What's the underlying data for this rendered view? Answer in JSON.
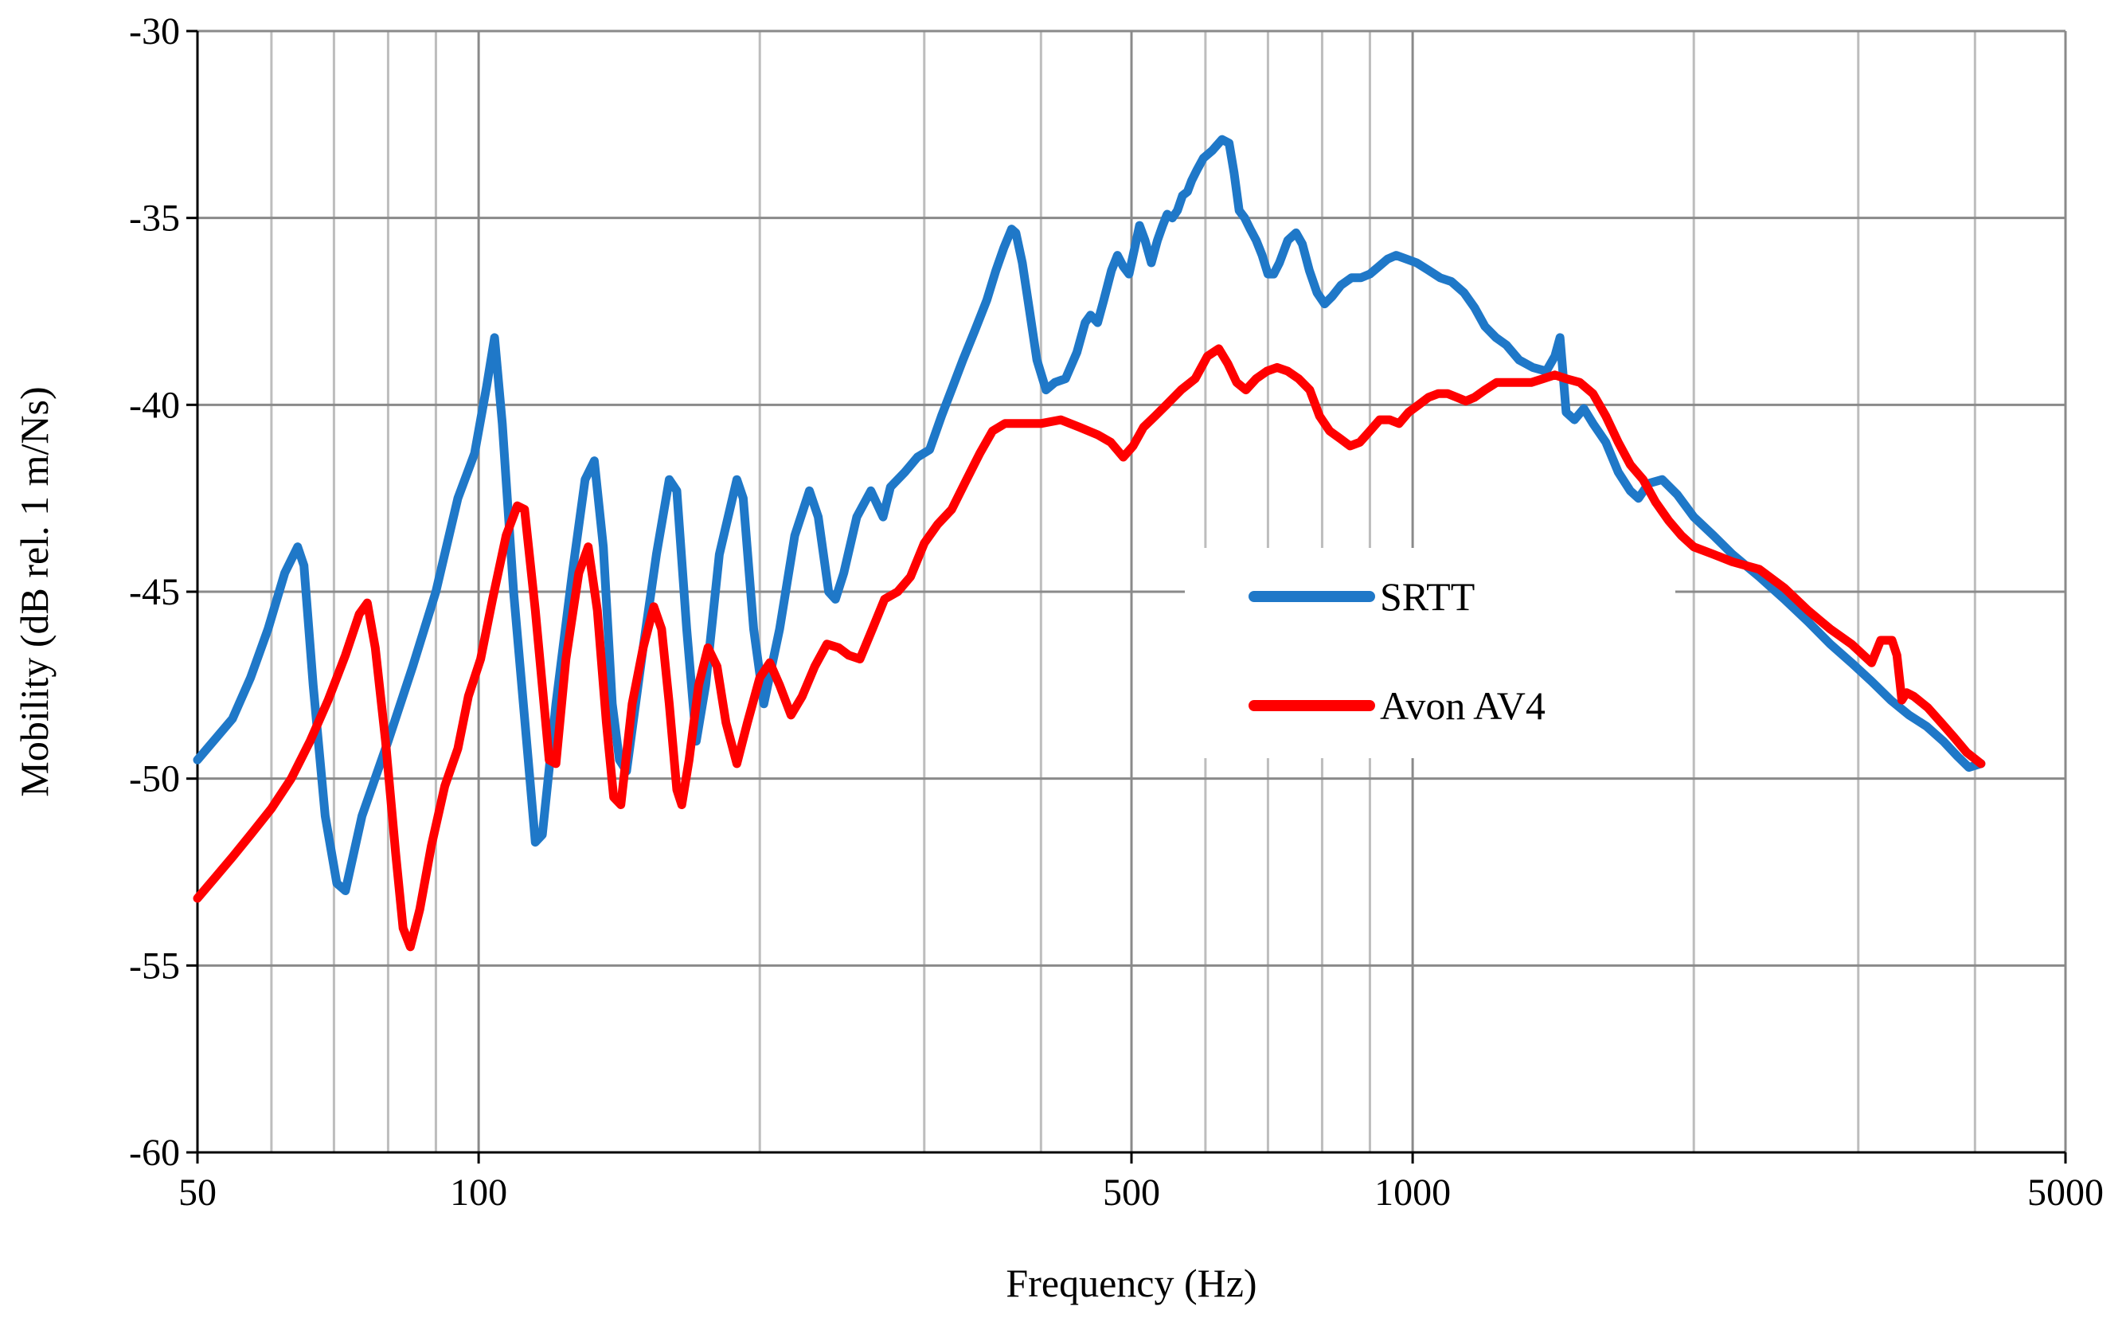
{
  "chart_data": {
    "type": "line",
    "title": "",
    "xlabel": "Frequency (Hz)",
    "ylabel": "Mobility (dB rel. 1 m/Ns)",
    "xscale": "log",
    "xlim": [
      50,
      5000
    ],
    "ylim": [
      -60,
      -30
    ],
    "x_ticks": [
      50,
      100,
      500,
      1000,
      5000
    ],
    "x_tick_labels": [
      "50",
      "100",
      "500",
      "1000",
      "5000"
    ],
    "y_ticks": [
      -60,
      -55,
      -50,
      -45,
      -40,
      -35,
      -30
    ],
    "y_tick_labels": [
      "-60",
      "-55",
      "-50",
      "-45",
      "-40",
      "-35",
      "-30"
    ],
    "grid": true,
    "legend_position": "center-right",
    "series": [
      {
        "name": "SRTT",
        "color": "#1f78c8",
        "points": [
          [
            50,
            -49.5
          ],
          [
            52,
            -49.0
          ],
          [
            54.5,
            -48.4
          ],
          [
            57,
            -47.3
          ],
          [
            59.5,
            -46.0
          ],
          [
            62,
            -44.5
          ],
          [
            64,
            -43.8
          ],
          [
            65,
            -44.3
          ],
          [
            66.5,
            -47.5
          ],
          [
            68.5,
            -51.0
          ],
          [
            70.5,
            -52.8
          ],
          [
            72,
            -53.0
          ],
          [
            75,
            -51.0
          ],
          [
            80,
            -49.0
          ],
          [
            85,
            -47.0
          ],
          [
            90,
            -45.0
          ],
          [
            95,
            -42.5
          ],
          [
            99,
            -41.3
          ],
          [
            102,
            -39.5
          ],
          [
            104,
            -38.2
          ],
          [
            106,
            -40.5
          ],
          [
            109,
            -45.0
          ],
          [
            113,
            -49.5
          ],
          [
            115,
            -51.7
          ],
          [
            117,
            -51.5
          ],
          [
            121,
            -48.0
          ],
          [
            126,
            -44.5
          ],
          [
            130,
            -42.0
          ],
          [
            133,
            -41.5
          ],
          [
            136,
            -43.8
          ],
          [
            139,
            -48.0
          ],
          [
            141.5,
            -49.5
          ],
          [
            144,
            -49.8
          ],
          [
            150,
            -46.5
          ],
          [
            155,
            -44.0
          ],
          [
            160,
            -42.0
          ],
          [
            163,
            -42.3
          ],
          [
            167,
            -46.0
          ],
          [
            171,
            -49.0
          ],
          [
            175,
            -47.5
          ],
          [
            181,
            -44.0
          ],
          [
            189,
            -42.0
          ],
          [
            192,
            -42.5
          ],
          [
            197,
            -46.0
          ],
          [
            202,
            -48.0
          ],
          [
            210,
            -46.0
          ],
          [
            218,
            -43.5
          ],
          [
            226,
            -42.3
          ],
          [
            231,
            -43.0
          ],
          [
            237,
            -45.0
          ],
          [
            241,
            -45.2
          ],
          [
            246,
            -44.5
          ],
          [
            254,
            -43.0
          ],
          [
            263,
            -42.3
          ],
          [
            271,
            -43.0
          ],
          [
            276,
            -42.2
          ],
          [
            286,
            -41.8
          ],
          [
            295,
            -41.4
          ],
          [
            304,
            -41.2
          ],
          [
            313,
            -40.3
          ],
          [
            322,
            -39.5
          ],
          [
            330,
            -38.8
          ],
          [
            340,
            -38.0
          ],
          [
            350,
            -37.2
          ],
          [
            358,
            -36.4
          ],
          [
            365,
            -35.8
          ],
          [
            372,
            -35.3
          ],
          [
            376,
            -35.4
          ],
          [
            382,
            -36.2
          ],
          [
            389,
            -37.5
          ],
          [
            396,
            -38.8
          ],
          [
            405,
            -39.6
          ],
          [
            414,
            -39.4
          ],
          [
            425,
            -39.3
          ],
          [
            437,
            -38.6
          ],
          [
            446,
            -37.8
          ],
          [
            452,
            -37.6
          ],
          [
            460,
            -37.8
          ],
          [
            467,
            -37.2
          ],
          [
            476,
            -36.4
          ],
          [
            483,
            -36.0
          ],
          [
            490,
            -36.3
          ],
          [
            497,
            -36.5
          ],
          [
            504,
            -35.8
          ],
          [
            510,
            -35.2
          ],
          [
            517,
            -35.6
          ],
          [
            525,
            -36.2
          ],
          [
            533,
            -35.6
          ],
          [
            540,
            -35.2
          ],
          [
            546,
            -34.9
          ],
          [
            553,
            -35.0
          ],
          [
            560,
            -34.8
          ],
          [
            567,
            -34.4
          ],
          [
            574,
            -34.3
          ],
          [
            580,
            -34.0
          ],
          [
            588,
            -33.7
          ],
          [
            597,
            -33.4
          ],
          [
            610,
            -33.2
          ],
          [
            625,
            -32.9
          ],
          [
            636,
            -33.0
          ],
          [
            644,
            -33.8
          ],
          [
            652,
            -34.8
          ],
          [
            661,
            -35.0
          ],
          [
            670,
            -35.3
          ],
          [
            680,
            -35.6
          ],
          [
            690,
            -36.0
          ],
          [
            700,
            -36.5
          ],
          [
            710,
            -36.5
          ],
          [
            720,
            -36.2
          ],
          [
            735,
            -35.6
          ],
          [
            750,
            -35.4
          ],
          [
            762,
            -35.7
          ],
          [
            775,
            -36.4
          ],
          [
            790,
            -37.0
          ],
          [
            805,
            -37.3
          ],
          [
            820,
            -37.1
          ],
          [
            838,
            -36.8
          ],
          [
            860,
            -36.6
          ],
          [
            880,
            -36.6
          ],
          [
            900,
            -36.5
          ],
          [
            920,
            -36.3
          ],
          [
            940,
            -36.1
          ],
          [
            960,
            -36.0
          ],
          [
            985,
            -36.1
          ],
          [
            1010,
            -36.2
          ],
          [
            1040,
            -36.4
          ],
          [
            1070,
            -36.6
          ],
          [
            1100,
            -36.7
          ],
          [
            1135,
            -37.0
          ],
          [
            1165,
            -37.4
          ],
          [
            1195,
            -37.9
          ],
          [
            1228,
            -38.2
          ],
          [
            1260,
            -38.4
          ],
          [
            1300,
            -38.8
          ],
          [
            1345,
            -39.0
          ],
          [
            1390,
            -39.1
          ],
          [
            1420,
            -38.7
          ],
          [
            1438,
            -38.2
          ],
          [
            1448,
            -39.1
          ],
          [
            1460,
            -40.2
          ],
          [
            1490,
            -40.4
          ],
          [
            1525,
            -40.1
          ],
          [
            1560,
            -40.5
          ],
          [
            1610,
            -41.0
          ],
          [
            1660,
            -41.8
          ],
          [
            1710,
            -42.3
          ],
          [
            1745,
            -42.5
          ],
          [
            1790,
            -42.1
          ],
          [
            1850,
            -42.0
          ],
          [
            1920,
            -42.4
          ],
          [
            2000,
            -43.0
          ],
          [
            2100,
            -43.5
          ],
          [
            2200,
            -44.0
          ],
          [
            2350,
            -44.6
          ],
          [
            2500,
            -45.2
          ],
          [
            2650,
            -45.8
          ],
          [
            2800,
            -46.4
          ],
          [
            2950,
            -46.9
          ],
          [
            3100,
            -47.4
          ],
          [
            3250,
            -47.9
          ],
          [
            3400,
            -48.3
          ],
          [
            3550,
            -48.6
          ],
          [
            3700,
            -49.0
          ],
          [
            3830,
            -49.4
          ],
          [
            3940,
            -49.7
          ],
          [
            4060,
            -49.6
          ]
        ]
      },
      {
        "name": "Avon AV4",
        "color": "#ff0000",
        "points": [
          [
            50,
            -53.2
          ],
          [
            52,
            -52.7
          ],
          [
            54.5,
            -52.1
          ],
          [
            57,
            -51.5
          ],
          [
            60,
            -50.8
          ],
          [
            63,
            -50.0
          ],
          [
            66,
            -49.0
          ],
          [
            69,
            -47.9
          ],
          [
            72,
            -46.7
          ],
          [
            74.5,
            -45.6
          ],
          [
            76,
            -45.3
          ],
          [
            77.5,
            -46.5
          ],
          [
            79.5,
            -49.0
          ],
          [
            81.5,
            -52.0
          ],
          [
            83,
            -54.0
          ],
          [
            84.5,
            -54.5
          ],
          [
            86.5,
            -53.5
          ],
          [
            89,
            -51.8
          ],
          [
            92,
            -50.2
          ],
          [
            95,
            -49.2
          ],
          [
            97.5,
            -47.8
          ],
          [
            100.5,
            -46.8
          ],
          [
            103.5,
            -45.2
          ],
          [
            107,
            -43.5
          ],
          [
            110,
            -42.7
          ],
          [
            112,
            -42.8
          ],
          [
            115,
            -45.5
          ],
          [
            119,
            -49.5
          ],
          [
            121,
            -49.6
          ],
          [
            124,
            -46.8
          ],
          [
            128,
            -44.5
          ],
          [
            131,
            -43.8
          ],
          [
            134,
            -45.5
          ],
          [
            137,
            -48.5
          ],
          [
            139.5,
            -50.5
          ],
          [
            142,
            -50.7
          ],
          [
            146,
            -48.0
          ],
          [
            150,
            -46.5
          ],
          [
            154,
            -45.4
          ],
          [
            157,
            -46.0
          ],
          [
            160,
            -48.0
          ],
          [
            163,
            -50.3
          ],
          [
            165,
            -50.7
          ],
          [
            168,
            -49.5
          ],
          [
            172,
            -47.5
          ],
          [
            176,
            -46.5
          ],
          [
            180,
            -47.0
          ],
          [
            184,
            -48.5
          ],
          [
            189,
            -49.6
          ],
          [
            194,
            -48.5
          ],
          [
            200,
            -47.3
          ],
          [
            205,
            -46.9
          ],
          [
            210,
            -47.5
          ],
          [
            216,
            -48.3
          ],
          [
            222,
            -47.8
          ],
          [
            229,
            -47.0
          ],
          [
            236,
            -46.4
          ],
          [
            243,
            -46.5
          ],
          [
            249,
            -46.7
          ],
          [
            256,
            -46.8
          ],
          [
            264,
            -46.0
          ],
          [
            272,
            -45.2
          ],
          [
            281,
            -45.0
          ],
          [
            290,
            -44.6
          ],
          [
            300,
            -43.7
          ],
          [
            310,
            -43.2
          ],
          [
            321,
            -42.8
          ],
          [
            333,
            -42.0
          ],
          [
            344,
            -41.3
          ],
          [
            355,
            -40.7
          ],
          [
            366,
            -40.5
          ],
          [
            380,
            -40.5
          ],
          [
            400,
            -40.5
          ],
          [
            420,
            -40.4
          ],
          [
            440,
            -40.6
          ],
          [
            460,
            -40.8
          ],
          [
            475,
            -41.0
          ],
          [
            490,
            -41.4
          ],
          [
            502,
            -41.1
          ],
          [
            515,
            -40.6
          ],
          [
            530,
            -40.3
          ],
          [
            545,
            -40.0
          ],
          [
            565,
            -39.6
          ],
          [
            585,
            -39.3
          ],
          [
            603,
            -38.7
          ],
          [
            620,
            -38.5
          ],
          [
            634,
            -38.9
          ],
          [
            648,
            -39.4
          ],
          [
            663,
            -39.6
          ],
          [
            680,
            -39.3
          ],
          [
            698,
            -39.1
          ],
          [
            716,
            -39.0
          ],
          [
            735,
            -39.1
          ],
          [
            755,
            -39.3
          ],
          [
            776,
            -39.6
          ],
          [
            795,
            -40.3
          ],
          [
            815,
            -40.7
          ],
          [
            836,
            -40.9
          ],
          [
            857,
            -41.1
          ],
          [
            878,
            -41.0
          ],
          [
            900,
            -40.7
          ],
          [
            922,
            -40.4
          ],
          [
            945,
            -40.4
          ],
          [
            967,
            -40.5
          ],
          [
            990,
            -40.2
          ],
          [
            1015,
            -40.0
          ],
          [
            1040,
            -39.8
          ],
          [
            1065,
            -39.7
          ],
          [
            1090,
            -39.7
          ],
          [
            1115,
            -39.8
          ],
          [
            1140,
            -39.9
          ],
          [
            1165,
            -39.8
          ],
          [
            1195,
            -39.6
          ],
          [
            1230,
            -39.4
          ],
          [
            1265,
            -39.4
          ],
          [
            1300,
            -39.4
          ],
          [
            1340,
            -39.4
          ],
          [
            1380,
            -39.3
          ],
          [
            1420,
            -39.2
          ],
          [
            1460,
            -39.3
          ],
          [
            1510,
            -39.4
          ],
          [
            1560,
            -39.7
          ],
          [
            1610,
            -40.3
          ],
          [
            1660,
            -41.0
          ],
          [
            1710,
            -41.6
          ],
          [
            1765,
            -42.0
          ],
          [
            1820,
            -42.6
          ],
          [
            1880,
            -43.1
          ],
          [
            1940,
            -43.5
          ],
          [
            2000,
            -43.8
          ],
          [
            2100,
            -44.0
          ],
          [
            2200,
            -44.2
          ],
          [
            2350,
            -44.4
          ],
          [
            2500,
            -44.9
          ],
          [
            2650,
            -45.5
          ],
          [
            2800,
            -46.0
          ],
          [
            2950,
            -46.4
          ],
          [
            3100,
            -46.9
          ],
          [
            3170,
            -46.3
          ],
          [
            3260,
            -46.3
          ],
          [
            3300,
            -46.7
          ],
          [
            3340,
            -47.9
          ],
          [
            3380,
            -47.7
          ],
          [
            3440,
            -47.8
          ],
          [
            3560,
            -48.1
          ],
          [
            3680,
            -48.5
          ],
          [
            3800,
            -48.9
          ],
          [
            3920,
            -49.3
          ],
          [
            4060,
            -49.6
          ]
        ]
      }
    ]
  }
}
